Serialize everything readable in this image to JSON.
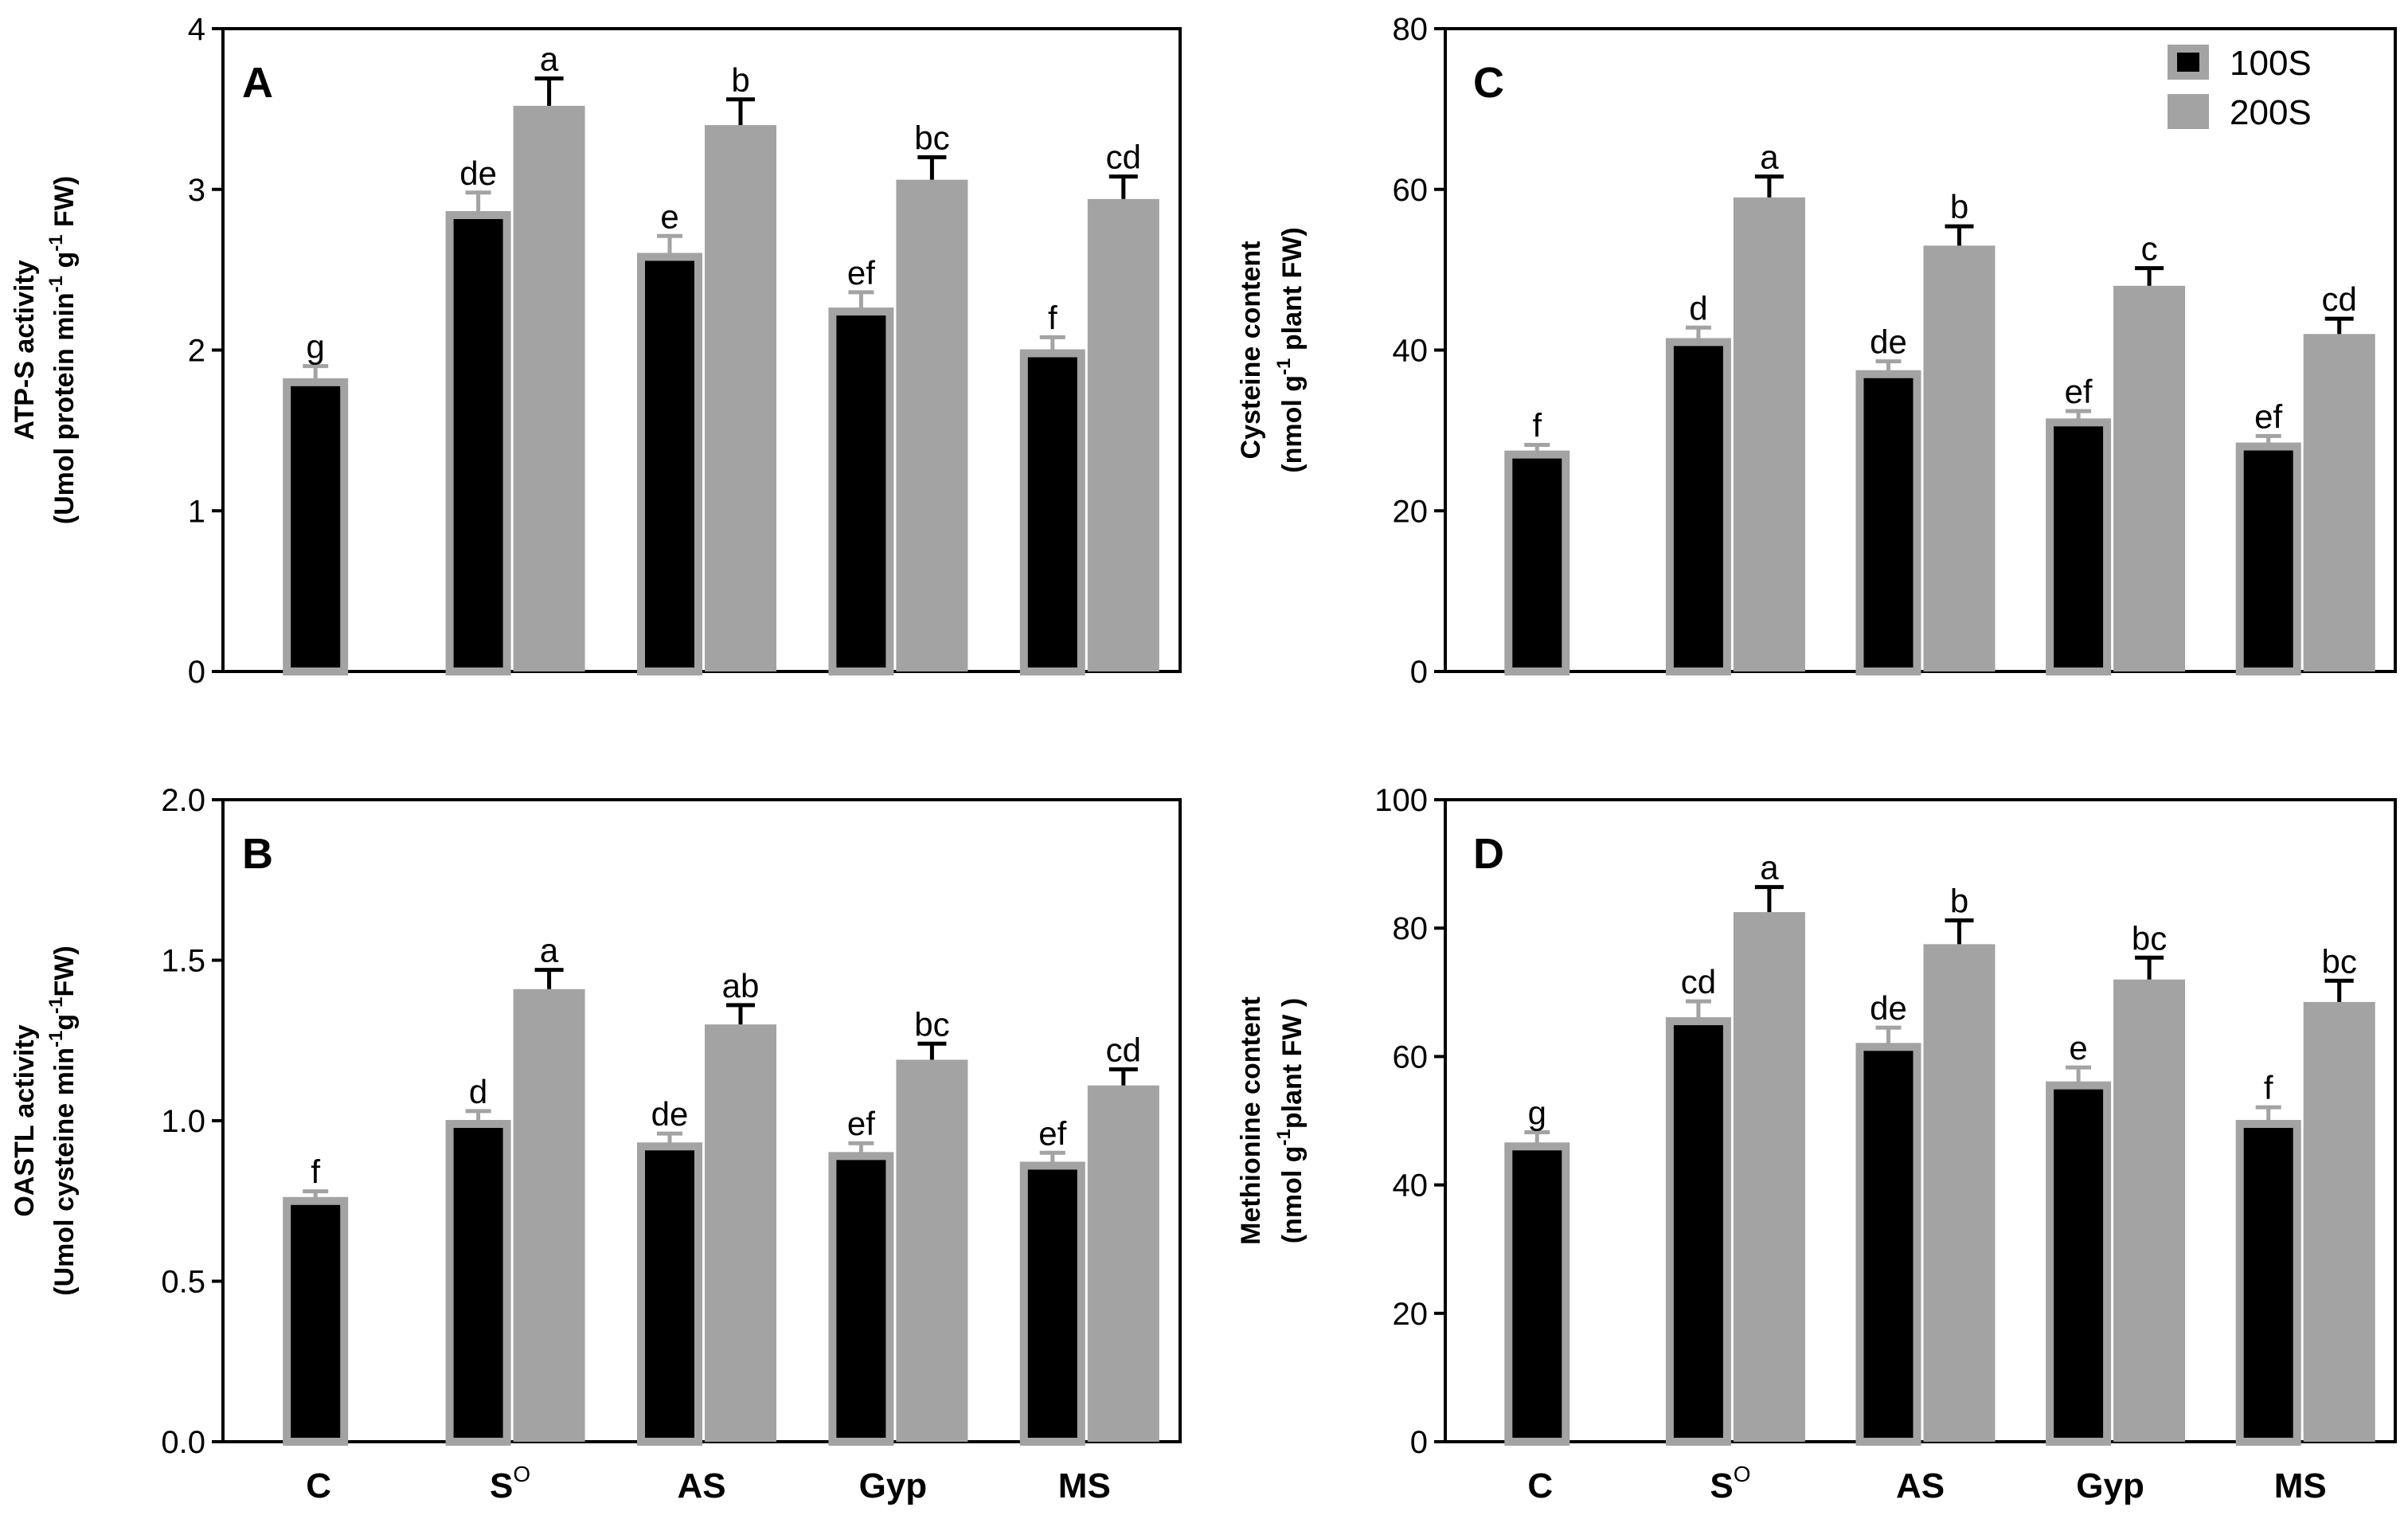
{
  "figure": {
    "categories": [
      "C",
      "S",
      "AS",
      "Gyp",
      "MS"
    ],
    "category_superscripts": [
      "",
      "O",
      "",
      "",
      ""
    ],
    "legend": [
      {
        "name": "100S",
        "color": "#000000"
      },
      {
        "name": "200S",
        "color": "#a3a3a3"
      }
    ],
    "colors": {
      "bar_100S": "#000000",
      "bar_200S": "#a3a3a3",
      "outline": "#a3a3a3",
      "axis": "#000000"
    }
  },
  "chart_data": [
    {
      "type": "bar",
      "panel": "A",
      "ylabel_line1": "ATP-S activity",
      "ylabel_line2": [
        {
          "t": "(Umol protein min"
        },
        {
          "t": "-1",
          "sup": true
        },
        {
          "t": " g"
        },
        {
          "t": "-1",
          "sup": true
        },
        {
          "t": " FW)"
        }
      ],
      "ylim": [
        0,
        4
      ],
      "yticks": [
        0,
        1,
        2,
        3,
        4
      ],
      "ytick_labels": [
        "0",
        "1",
        "2",
        "3",
        "4"
      ],
      "categories": [
        "C",
        "S",
        "AS",
        "Gyp",
        "MS"
      ],
      "series": [
        {
          "name": "100S",
          "values": [
            1.8,
            2.84,
            2.58,
            2.24,
            1.98
          ],
          "errors": [
            0.1,
            0.14,
            0.13,
            0.12,
            0.1
          ],
          "labels": [
            "g",
            "de",
            "e",
            "ef",
            "f"
          ]
        },
        {
          "name": "200S",
          "values": [
            null,
            3.52,
            3.4,
            3.06,
            2.94
          ],
          "errors": [
            null,
            0.17,
            0.16,
            0.14,
            0.14
          ],
          "labels": [
            "",
            "a",
            "b",
            "bc",
            "cd"
          ]
        }
      ]
    },
    {
      "type": "bar",
      "panel": "B",
      "ylabel_line1": "OASTL activity",
      "ylabel_line2": [
        {
          "t": "(Umol cysteine min"
        },
        {
          "t": "-1",
          "sup": true
        },
        {
          "t": "g"
        },
        {
          "t": "-1",
          "sup": true
        },
        {
          "t": "FW)"
        }
      ],
      "ylim": [
        0,
        2
      ],
      "yticks": [
        0,
        0.5,
        1,
        1.5,
        2
      ],
      "ytick_labels": [
        "0.0",
        "0.5",
        "1.0",
        "1.5",
        "2.0"
      ],
      "categories": [
        "C",
        "S",
        "AS",
        "Gyp",
        "MS"
      ],
      "series": [
        {
          "name": "100S",
          "values": [
            0.75,
            0.99,
            0.92,
            0.89,
            0.86
          ],
          "errors": [
            0.03,
            0.04,
            0.04,
            0.04,
            0.04
          ],
          "labels": [
            "f",
            "d",
            "de",
            "ef",
            "ef"
          ]
        },
        {
          "name": "200S",
          "values": [
            null,
            1.41,
            1.3,
            1.19,
            1.11
          ],
          "errors": [
            null,
            0.06,
            0.06,
            0.05,
            0.05
          ],
          "labels": [
            "",
            "a",
            "ab",
            "bc",
            "cd"
          ]
        }
      ]
    },
    {
      "type": "bar",
      "panel": "C",
      "ylabel_line1": "Cysteine content",
      "ylabel_line2": [
        {
          "t": "(nmol g"
        },
        {
          "t": "-1",
          "sup": true
        },
        {
          "t": " plant FW)"
        }
      ],
      "ylim": [
        0,
        80
      ],
      "yticks": [
        0,
        20,
        40,
        60,
        80
      ],
      "ytick_labels": [
        "0",
        "20",
        "40",
        "60",
        "80"
      ],
      "categories": [
        "C",
        "S",
        "AS",
        "Gyp",
        "MS"
      ],
      "series": [
        {
          "name": "100S",
          "values": [
            27,
            41,
            37,
            31,
            28
          ],
          "errors": [
            1.2,
            1.8,
            1.6,
            1.4,
            1.3
          ],
          "labels": [
            "f",
            "d",
            "de",
            "ef",
            "ef"
          ]
        },
        {
          "name": "200S",
          "values": [
            null,
            59,
            53,
            48,
            42
          ],
          "errors": [
            null,
            2.6,
            2.4,
            2.2,
            1.9
          ],
          "labels": [
            "",
            "a",
            "b",
            "c",
            "cd"
          ]
        }
      ]
    },
    {
      "type": "bar",
      "panel": "D",
      "ylabel_line1": "Methionine content",
      "ylabel_line2": [
        {
          "t": "(nmol g"
        },
        {
          "t": "-1",
          "sup": true
        },
        {
          "t": "plant FW )"
        }
      ],
      "ylim": [
        0,
        100
      ],
      "yticks": [
        0,
        20,
        40,
        60,
        80,
        100
      ],
      "ytick_labels": [
        "0",
        "20",
        "40",
        "60",
        "80",
        "100"
      ],
      "categories": [
        "C",
        "S",
        "AS",
        "Gyp",
        "MS"
      ],
      "series": [
        {
          "name": "100S",
          "values": [
            46,
            65.5,
            61.5,
            55.5,
            49.5
          ],
          "errors": [
            2.2,
            3.1,
            3.0,
            2.8,
            2.6
          ],
          "labels": [
            "g",
            "cd",
            "de",
            "e",
            "f"
          ]
        },
        {
          "name": "200S",
          "values": [
            null,
            82.5,
            77.5,
            72,
            68.5
          ],
          "errors": [
            null,
            3.9,
            3.7,
            3.4,
            3.3
          ],
          "labels": [
            "",
            "a",
            "b",
            "bc",
            "bc"
          ]
        }
      ]
    }
  ]
}
